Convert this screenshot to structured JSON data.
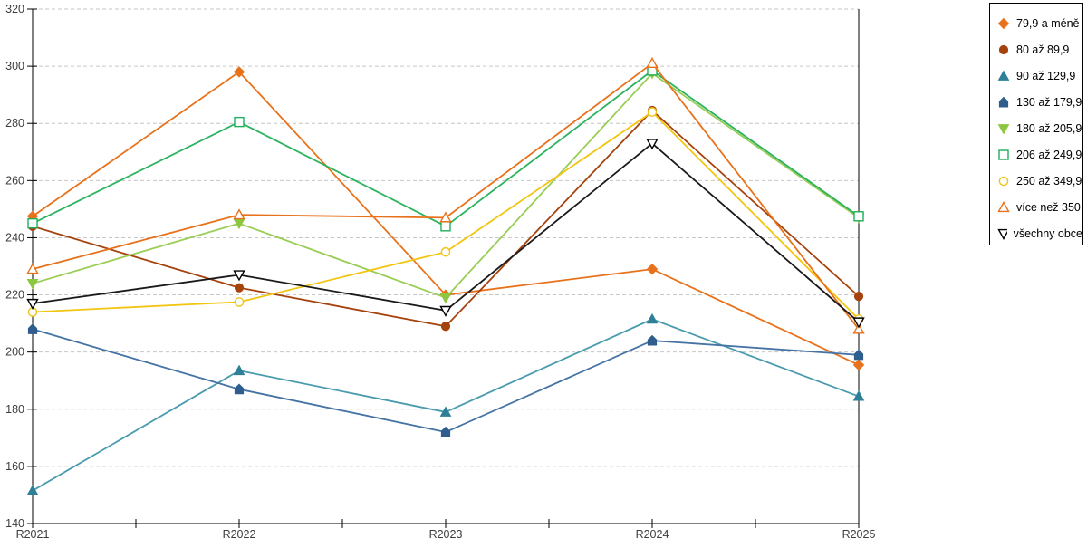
{
  "chart_data": {
    "type": "line",
    "title": "",
    "categories": [
      "R2021",
      "R2022",
      "R2023",
      "R2024",
      "R2025"
    ],
    "y_axis": {
      "min": 140,
      "max": 320,
      "step": 20,
      "tick_labels": [
        "140",
        "160",
        "180",
        "200",
        "220",
        "240",
        "260",
        "280",
        "300",
        "320"
      ]
    },
    "grid": {
      "show": true,
      "style": "dashed",
      "color": "#C6C6C6"
    },
    "axis_color": "#000000",
    "label_color": "#3D3D3D",
    "legend_position": "top-right",
    "series": [
      {
        "id": "79-9-a-mene",
        "name": "79,9 a méně",
        "marker": "diamond",
        "fill": "solid",
        "color": "#E8721B",
        "line_color": "#E8721B",
        "values": [
          247.5,
          298,
          220,
          229,
          195.5
        ]
      },
      {
        "id": "80-az-89-9",
        "name": "80 až 89,9",
        "marker": "circle",
        "fill": "solid",
        "color": "#A6420D",
        "line_color": "#A6420D",
        "values": [
          244,
          222.5,
          209,
          284.5,
          219.5
        ]
      },
      {
        "id": "90-az-129-9",
        "name": "90 až 129,9",
        "marker": "triangle-up",
        "fill": "solid",
        "color": "#2E7F97",
        "line_color": "#4A9BAE",
        "values": [
          151.5,
          193.5,
          179,
          211.5,
          184.5
        ]
      },
      {
        "id": "130-az-179-9",
        "name": "130 až 179,9",
        "marker": "pentagon",
        "fill": "solid",
        "color": "#2F5E8E",
        "line_color": "#4473A4",
        "values": [
          208,
          187,
          172,
          204,
          199
        ]
      },
      {
        "id": "180-az-205-9",
        "name": "180 až 205,9",
        "marker": "triangle-down",
        "fill": "solid",
        "color": "#8DC63F",
        "line_color": "#9ACD55",
        "values": [
          224,
          245,
          219,
          297.5,
          247
        ]
      },
      {
        "id": "206-az-249-9",
        "name": "206 až 249,9",
        "marker": "square",
        "fill": "open",
        "color": "#1FAF5B",
        "line_color": "#2BB35F",
        "values": [
          245,
          280.5,
          244,
          298.5,
          247.5
        ]
      },
      {
        "id": "250-az-349-9",
        "name": "250 až 349,9",
        "marker": "circle",
        "fill": "open",
        "color": "#F0C419",
        "line_color": "#F2C511",
        "values": [
          214,
          217.5,
          235,
          284,
          211.5
        ]
      },
      {
        "id": "vice-nez-350",
        "name": "více než 350",
        "marker": "triangle-up",
        "fill": "open",
        "color": "#E8721B",
        "line_color": "#E8721B",
        "values": [
          229,
          248,
          247,
          301,
          208
        ]
      },
      {
        "id": "vsechny-obce",
        "name": "všechny obce",
        "marker": "triangle-down",
        "fill": "open",
        "color": "#000000",
        "line_color": "#1A1A1A",
        "values": [
          217,
          227,
          214.5,
          273,
          210.5
        ]
      }
    ]
  }
}
